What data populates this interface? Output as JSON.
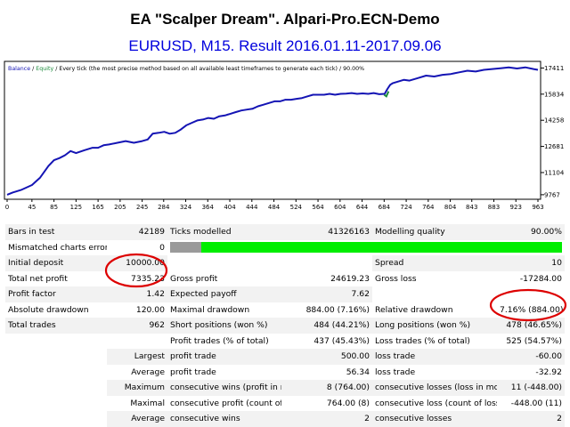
{
  "header": {
    "title": "EA \"Scalper Dream\". Alpari-Pro.ECN-Demo",
    "subtitle": "EURUSD, M15. Result 2016.01.11-2017.09.06"
  },
  "colors": {
    "balance_line": "#1414b4",
    "equity_line": "#1c8c3c",
    "quality_bar": "#00ee00",
    "highlight_oval": "#dd0000",
    "subtitle": "#0000dd"
  },
  "chart_data": {
    "type": "line",
    "legend": {
      "balance_label": "Balance",
      "separator": "/",
      "equity_label": "Equity",
      "description": "/ Every tick (the most precise method based on all available least timeframes to generate each tick) / 90.00%"
    },
    "x_ticks": [
      "0",
      "45",
      "85",
      "125",
      "165",
      "205",
      "245",
      "284",
      "324",
      "364",
      "404",
      "444",
      "484",
      "524",
      "564",
      "604",
      "644",
      "684",
      "724",
      "764",
      "804",
      "843",
      "883",
      "923",
      "963"
    ],
    "y_ticks": [
      9767,
      11104,
      12681,
      14258,
      15834,
      17411
    ],
    "y_tick_labels": [
      "9767",
      "11104",
      "12681",
      "14258",
      "15834",
      "17411"
    ],
    "xlim": [
      0,
      963
    ],
    "ylim": [
      9600,
      17650
    ],
    "grid": false,
    "series": [
      {
        "name": "Balance",
        "x": [
          0,
          10,
          25,
          45,
          60,
          75,
          85,
          95,
          105,
          115,
          125,
          140,
          155,
          165,
          175,
          185,
          200,
          215,
          230,
          245,
          255,
          264,
          275,
          285,
          295,
          305,
          315,
          325,
          335,
          345,
          355,
          365,
          375,
          385,
          395,
          405,
          415,
          425,
          435,
          445,
          455,
          465,
          475,
          485,
          495,
          505,
          515,
          525,
          535,
          545,
          555,
          565,
          575,
          585,
          595,
          605,
          615,
          625,
          635,
          645,
          655,
          665,
          675,
          685,
          690,
          695,
          700,
          710,
          720,
          730,
          745,
          760,
          775,
          790,
          805,
          820,
          835,
          850,
          865,
          880,
          895,
          910,
          925,
          940,
          955,
          963
        ],
        "values": [
          9767,
          9900,
          10050,
          10350,
          10800,
          11500,
          11850,
          11980,
          12150,
          12400,
          12280,
          12450,
          12600,
          12600,
          12750,
          12800,
          12900,
          13000,
          12900,
          13000,
          13100,
          13450,
          13500,
          13560,
          13450,
          13500,
          13700,
          13950,
          14100,
          14250,
          14300,
          14400,
          14350,
          14500,
          14550,
          14650,
          14750,
          14850,
          14900,
          14950,
          15100,
          15200,
          15300,
          15400,
          15400,
          15500,
          15500,
          15550,
          15600,
          15700,
          15800,
          15800,
          15800,
          15850,
          15800,
          15850,
          15870,
          15900,
          15850,
          15880,
          15850,
          15900,
          15830,
          15850,
          16150,
          16400,
          16500,
          16600,
          16700,
          16650,
          16800,
          16950,
          16900,
          17000,
          17050,
          17150,
          17250,
          17200,
          17300,
          17350,
          17400,
          17450,
          17380,
          17450,
          17350,
          17300
        ]
      },
      {
        "name": "Equity",
        "x": [
          684,
          688,
          692
        ],
        "values": [
          15800,
          15700,
          16000
        ]
      }
    ]
  },
  "stats": {
    "row1": {
      "l1": "Bars in test",
      "v1": "42189",
      "l2": "Ticks modelled",
      "v2": "41326163",
      "l3": "Modelling quality",
      "v3": "90.00%"
    },
    "row2": {
      "l1": "Mismatched charts errors",
      "v1": "0",
      "quality_fraction": 0.9
    },
    "row3": {
      "l1": "Initial deposit",
      "v1": "10000.00",
      "l3": "Spread",
      "v3": "10"
    },
    "row4": {
      "l1": "Total net profit",
      "v1": "7335.23",
      "l2": "Gross profit",
      "v2": "24619.23",
      "l3": "Gross loss",
      "v3": "-17284.00"
    },
    "row5": {
      "l1": "Profit factor",
      "v1": "1.42",
      "l2": "Expected payoff",
      "v2": "7.62"
    },
    "row6": {
      "l1": "Absolute drawdown",
      "v1": "120.00",
      "l2": "Maximal drawdown",
      "v2": "884.00 (7.16%)",
      "l3": "Relative drawdown",
      "v3": "7.16% (884.00)"
    },
    "row7": {
      "l1": "Total trades",
      "v1": "962",
      "l2": "Short positions (won %)",
      "v2": "484 (44.21%)",
      "l3": "Long positions (won %)",
      "v3": "478 (46.65%)"
    },
    "row8": {
      "l2": "Profit trades (% of total)",
      "v2": "437 (45.43%)",
      "l3": "Loss trades (% of total)",
      "v3": "525 (54.57%)"
    },
    "row9": {
      "l1": "Largest",
      "l2": "profit trade",
      "v2": "500.00",
      "l3": "loss trade",
      "v3": "-60.00"
    },
    "row10": {
      "l1": "Average",
      "l2": "profit trade",
      "v2": "56.34",
      "l3": "loss trade",
      "v3": "-32.92"
    },
    "row11": {
      "l1": "Maximum",
      "l2": "consecutive wins (profit in money)",
      "v2": "8 (764.00)",
      "l3": "consecutive losses (loss in money)",
      "v3": "11 (-448.00)"
    },
    "row12": {
      "l1": "Maximal",
      "l2": "consecutive profit (count of wins)",
      "v2": "764.00 (8)",
      "l3": "consecutive loss (count of losses)",
      "v3": "-448.00 (11)"
    },
    "row13": {
      "l1": "Average",
      "l2": "consecutive wins",
      "v2": "2",
      "l3": "consecutive losses",
      "v3": "2"
    }
  }
}
